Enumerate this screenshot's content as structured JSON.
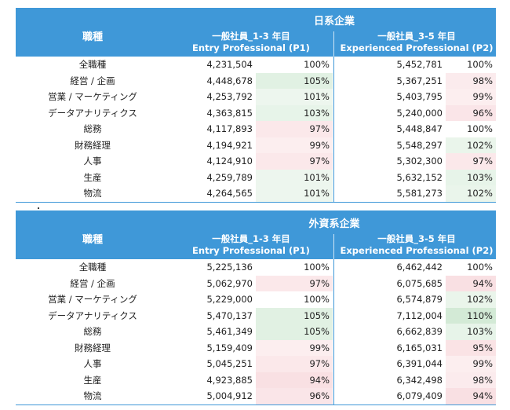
{
  "headers": {
    "row_label": "職種",
    "p1_line1": "一般社員_1-3 年目",
    "p1_line2": "Entry Professional (P1)",
    "p2_line1": "一般社員_3-5 年目",
    "p2_line2": "Experienced Professional (P2)"
  },
  "separator_mark": "・",
  "colors": {
    "header_bg": "#3f98d8",
    "header_text": "#ffffff",
    "green": "#d3ead6",
    "red": "#f7d5d9",
    "neutral": "#ffffff"
  },
  "tables": [
    {
      "title": "日系企業",
      "rows": [
        {
          "label": "全職種",
          "p1": "4,231,504",
          "p1_pct": "100%",
          "p2": "5,452,781",
          "p2_pct": "100%"
        },
        {
          "label": "経営 / 企画",
          "p1": "4,448,678",
          "p1_pct": "105%",
          "p2": "5,367,251",
          "p2_pct": "98%"
        },
        {
          "label": "営業 / マーケティング",
          "p1": "4,253,792",
          "p1_pct": "101%",
          "p2": "5,403,795",
          "p2_pct": "99%"
        },
        {
          "label": "データアナリティクス",
          "p1": "4,363,815",
          "p1_pct": "103%",
          "p2": "5,240,000",
          "p2_pct": "96%"
        },
        {
          "label": "総務",
          "p1": "4,117,893",
          "p1_pct": "97%",
          "p2": "5,448,847",
          "p2_pct": "100%"
        },
        {
          "label": "財務経理",
          "p1": "4,194,921",
          "p1_pct": "99%",
          "p2": "5,548,297",
          "p2_pct": "102%"
        },
        {
          "label": "人事",
          "p1": "4,124,910",
          "p1_pct": "97%",
          "p2": "5,302,300",
          "p2_pct": "97%"
        },
        {
          "label": "生産",
          "p1": "4,259,789",
          "p1_pct": "101%",
          "p2": "5,632,152",
          "p2_pct": "103%"
        },
        {
          "label": "物流",
          "p1": "4,264,565",
          "p1_pct": "101%",
          "p2": "5,581,273",
          "p2_pct": "102%"
        }
      ]
    },
    {
      "title": "外資系企業",
      "rows": [
        {
          "label": "全職種",
          "p1": "5,225,136",
          "p1_pct": "100%",
          "p2": "6,462,442",
          "p2_pct": "100%"
        },
        {
          "label": "経営 / 企画",
          "p1": "5,062,970",
          "p1_pct": "97%",
          "p2": "6,075,685",
          "p2_pct": "94%"
        },
        {
          "label": "営業 / マーケティング",
          "p1": "5,229,000",
          "p1_pct": "100%",
          "p2": "6,574,879",
          "p2_pct": "102%"
        },
        {
          "label": "データアナリティクス",
          "p1": "5,470,137",
          "p1_pct": "105%",
          "p2": "7,112,004",
          "p2_pct": "110%"
        },
        {
          "label": "総務",
          "p1": "5,461,349",
          "p1_pct": "105%",
          "p2": "6,662,839",
          "p2_pct": "103%"
        },
        {
          "label": "財務経理",
          "p1": "5,159,409",
          "p1_pct": "99%",
          "p2": "6,165,031",
          "p2_pct": "95%"
        },
        {
          "label": "人事",
          "p1": "5,045,251",
          "p1_pct": "97%",
          "p2": "6,391,044",
          "p2_pct": "99%"
        },
        {
          "label": "生産",
          "p1": "4,923,885",
          "p1_pct": "94%",
          "p2": "6,342,498",
          "p2_pct": "98%"
        },
        {
          "label": "物流",
          "p1": "5,004,912",
          "p1_pct": "96%",
          "p2": "6,079,409",
          "p2_pct": "94%"
        }
      ]
    }
  ]
}
